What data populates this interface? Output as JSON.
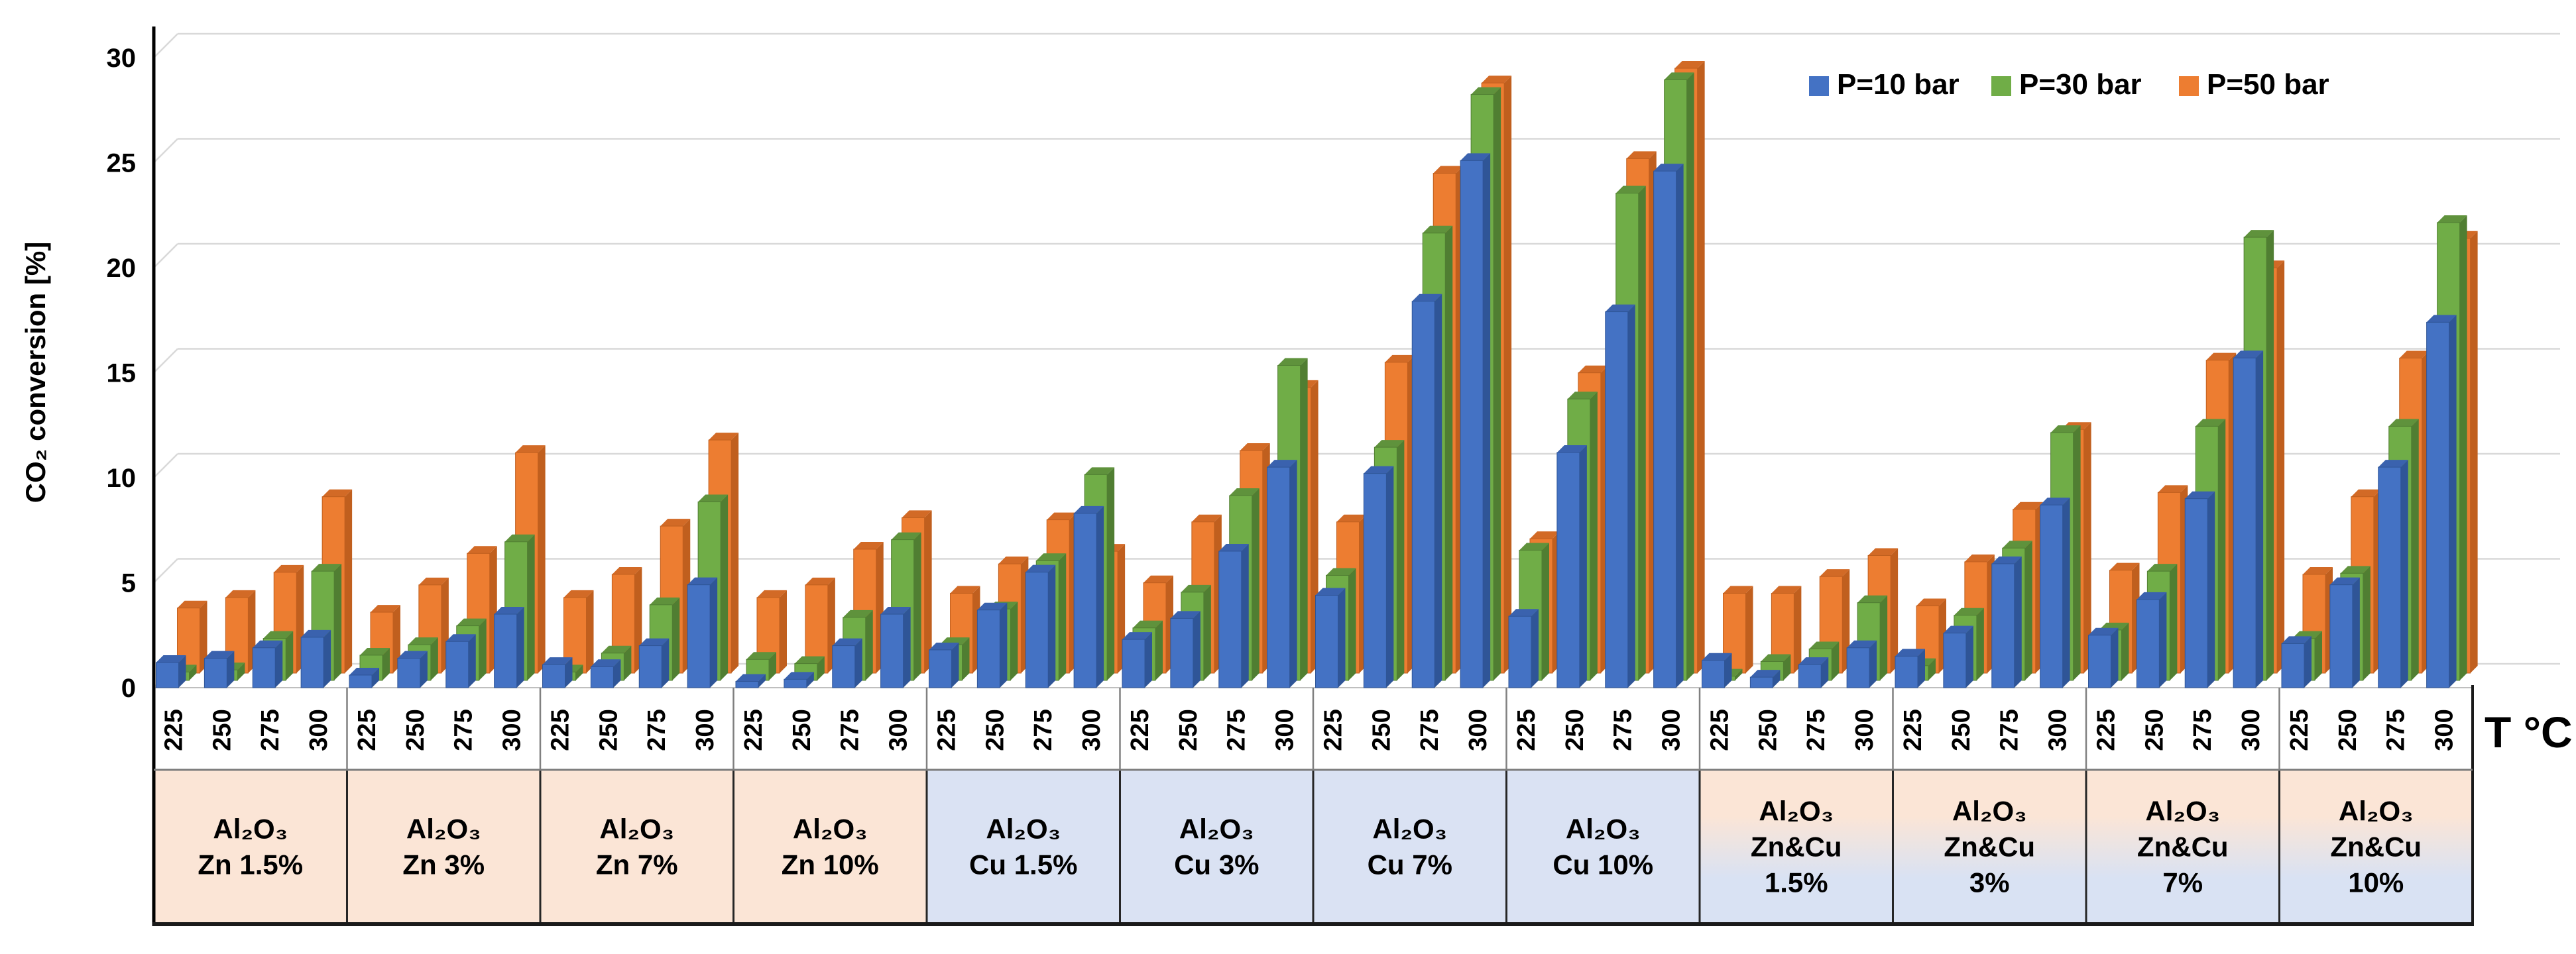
{
  "chart_data": {
    "type": "bar",
    "title": "",
    "ylabel": "CO₂ conversion [%]",
    "xlabel": "T °C",
    "ylim": [
      0,
      30
    ],
    "yticks": [
      0,
      5,
      10,
      15,
      20,
      25,
      30
    ],
    "grid": true,
    "legend_position": "top-right",
    "gridline_color": "#D9D9D9",
    "floor_line_color": "#BFBFBF",
    "temperatures": [
      "225",
      "250",
      "275",
      "300"
    ],
    "series": [
      {
        "name": "P=10 bar",
        "color": "#4472C4",
        "side_color": "#2F5597",
        "top_color": "#3A62AE"
      },
      {
        "name": "P=30 bar",
        "color": "#70AD47",
        "side_color": "#507E32",
        "top_color": "#5F923C"
      },
      {
        "name": "P=50 bar",
        "color": "#ED7D31",
        "side_color": "#C05F1E",
        "top_color": "#D26A26"
      }
    ],
    "band_colors": {
      "zn": "#FBE5D6",
      "cu": "#DAE2F3",
      "zncu_top": "#FBE5D6",
      "zncu_bottom": "#D9E2F3"
    },
    "groups": [
      {
        "label_lines": [
          "Al₂O₃",
          "Zn 1.5%"
        ],
        "band": "zn",
        "values": [
          [
            1.2,
            0.4,
            3.1
          ],
          [
            1.4,
            0.5,
            3.6
          ],
          [
            1.9,
            2.0,
            4.8
          ],
          [
            2.4,
            5.2,
            8.4
          ]
        ]
      },
      {
        "label_lines": [
          "Al₂O₃",
          "Zn 3%"
        ],
        "band": "zn",
        "values": [
          [
            0.6,
            1.2,
            2.9
          ],
          [
            1.4,
            1.7,
            4.2
          ],
          [
            2.2,
            2.6,
            5.7
          ],
          [
            3.5,
            6.6,
            10.5
          ]
        ]
      },
      {
        "label_lines": [
          "Al₂O₃",
          "Zn 7%"
        ],
        "band": "zn",
        "values": [
          [
            1.1,
            0.4,
            3.6
          ],
          [
            1.0,
            1.3,
            4.7
          ],
          [
            2.0,
            3.6,
            7.0
          ],
          [
            4.9,
            8.5,
            11.1
          ]
        ]
      },
      {
        "label_lines": [
          "Al₂O₃",
          "Zn 10%"
        ],
        "band": "zn",
        "values": [
          [
            0.3,
            1.0,
            3.6
          ],
          [
            0.4,
            0.8,
            4.2
          ],
          [
            2.0,
            3.0,
            5.9
          ],
          [
            3.5,
            6.7,
            7.4
          ]
        ]
      },
      {
        "label_lines": [
          "Al₂O₃",
          "Cu 1.5%"
        ],
        "band": "cu",
        "values": [
          [
            1.8,
            1.7,
            3.8
          ],
          [
            3.7,
            3.4,
            5.2
          ],
          [
            5.5,
            5.7,
            7.3
          ],
          [
            8.3,
            9.8,
            5.8
          ]
        ]
      },
      {
        "label_lines": [
          "Al₂O₃",
          "Cu 3%"
        ],
        "band": "cu",
        "values": [
          [
            2.3,
            2.5,
            4.3
          ],
          [
            3.3,
            4.2,
            7.2
          ],
          [
            6.5,
            8.8,
            10.6
          ],
          [
            10.5,
            15.0,
            13.6
          ]
        ]
      },
      {
        "label_lines": [
          "Al₂O₃",
          "Cu 7%"
        ],
        "band": "cu",
        "values": [
          [
            4.4,
            5.0,
            7.2
          ],
          [
            10.2,
            11.1,
            14.8
          ],
          [
            18.4,
            21.3,
            23.8
          ],
          [
            25.1,
            27.9,
            28.1
          ]
        ]
      },
      {
        "label_lines": [
          "Al₂O₃",
          "Cu 10%"
        ],
        "band": "cu",
        "values": [
          [
            3.4,
            6.2,
            6.4
          ],
          [
            11.2,
            13.4,
            14.3
          ],
          [
            17.9,
            23.2,
            24.5
          ],
          [
            24.6,
            28.6,
            28.8
          ]
        ]
      },
      {
        "label_lines": [
          "Al₂O₃",
          "Zn&Cu",
          "1.5%"
        ],
        "band": "zncu",
        "values": [
          [
            1.3,
            0.2,
            3.8
          ],
          [
            0.5,
            0.9,
            3.8
          ],
          [
            1.1,
            1.5,
            4.6
          ],
          [
            1.9,
            3.7,
            5.6
          ]
        ]
      },
      {
        "label_lines": [
          "Al₂O₃",
          "Zn&Cu",
          "3%"
        ],
        "band": "zncu",
        "values": [
          [
            1.5,
            0.7,
            3.2
          ],
          [
            2.6,
            3.1,
            5.3
          ],
          [
            5.9,
            6.3,
            7.8
          ],
          [
            8.7,
            11.8,
            11.6
          ]
        ]
      },
      {
        "label_lines": [
          "Al₂O₃",
          "Zn&Cu",
          "7%"
        ],
        "band": "zncu",
        "values": [
          [
            2.5,
            2.4,
            4.9
          ],
          [
            4.2,
            5.2,
            8.6
          ],
          [
            9.0,
            12.1,
            14.9
          ],
          [
            15.7,
            21.1,
            19.3
          ]
        ]
      },
      {
        "label_lines": [
          "Al₂O₃",
          "Zn&Cu",
          "10%"
        ],
        "band": "zncu",
        "values": [
          [
            2.1,
            2.0,
            4.7
          ],
          [
            4.9,
            5.1,
            8.4
          ],
          [
            10.5,
            12.1,
            15.0
          ],
          [
            17.4,
            21.8,
            20.7
          ]
        ]
      }
    ]
  }
}
